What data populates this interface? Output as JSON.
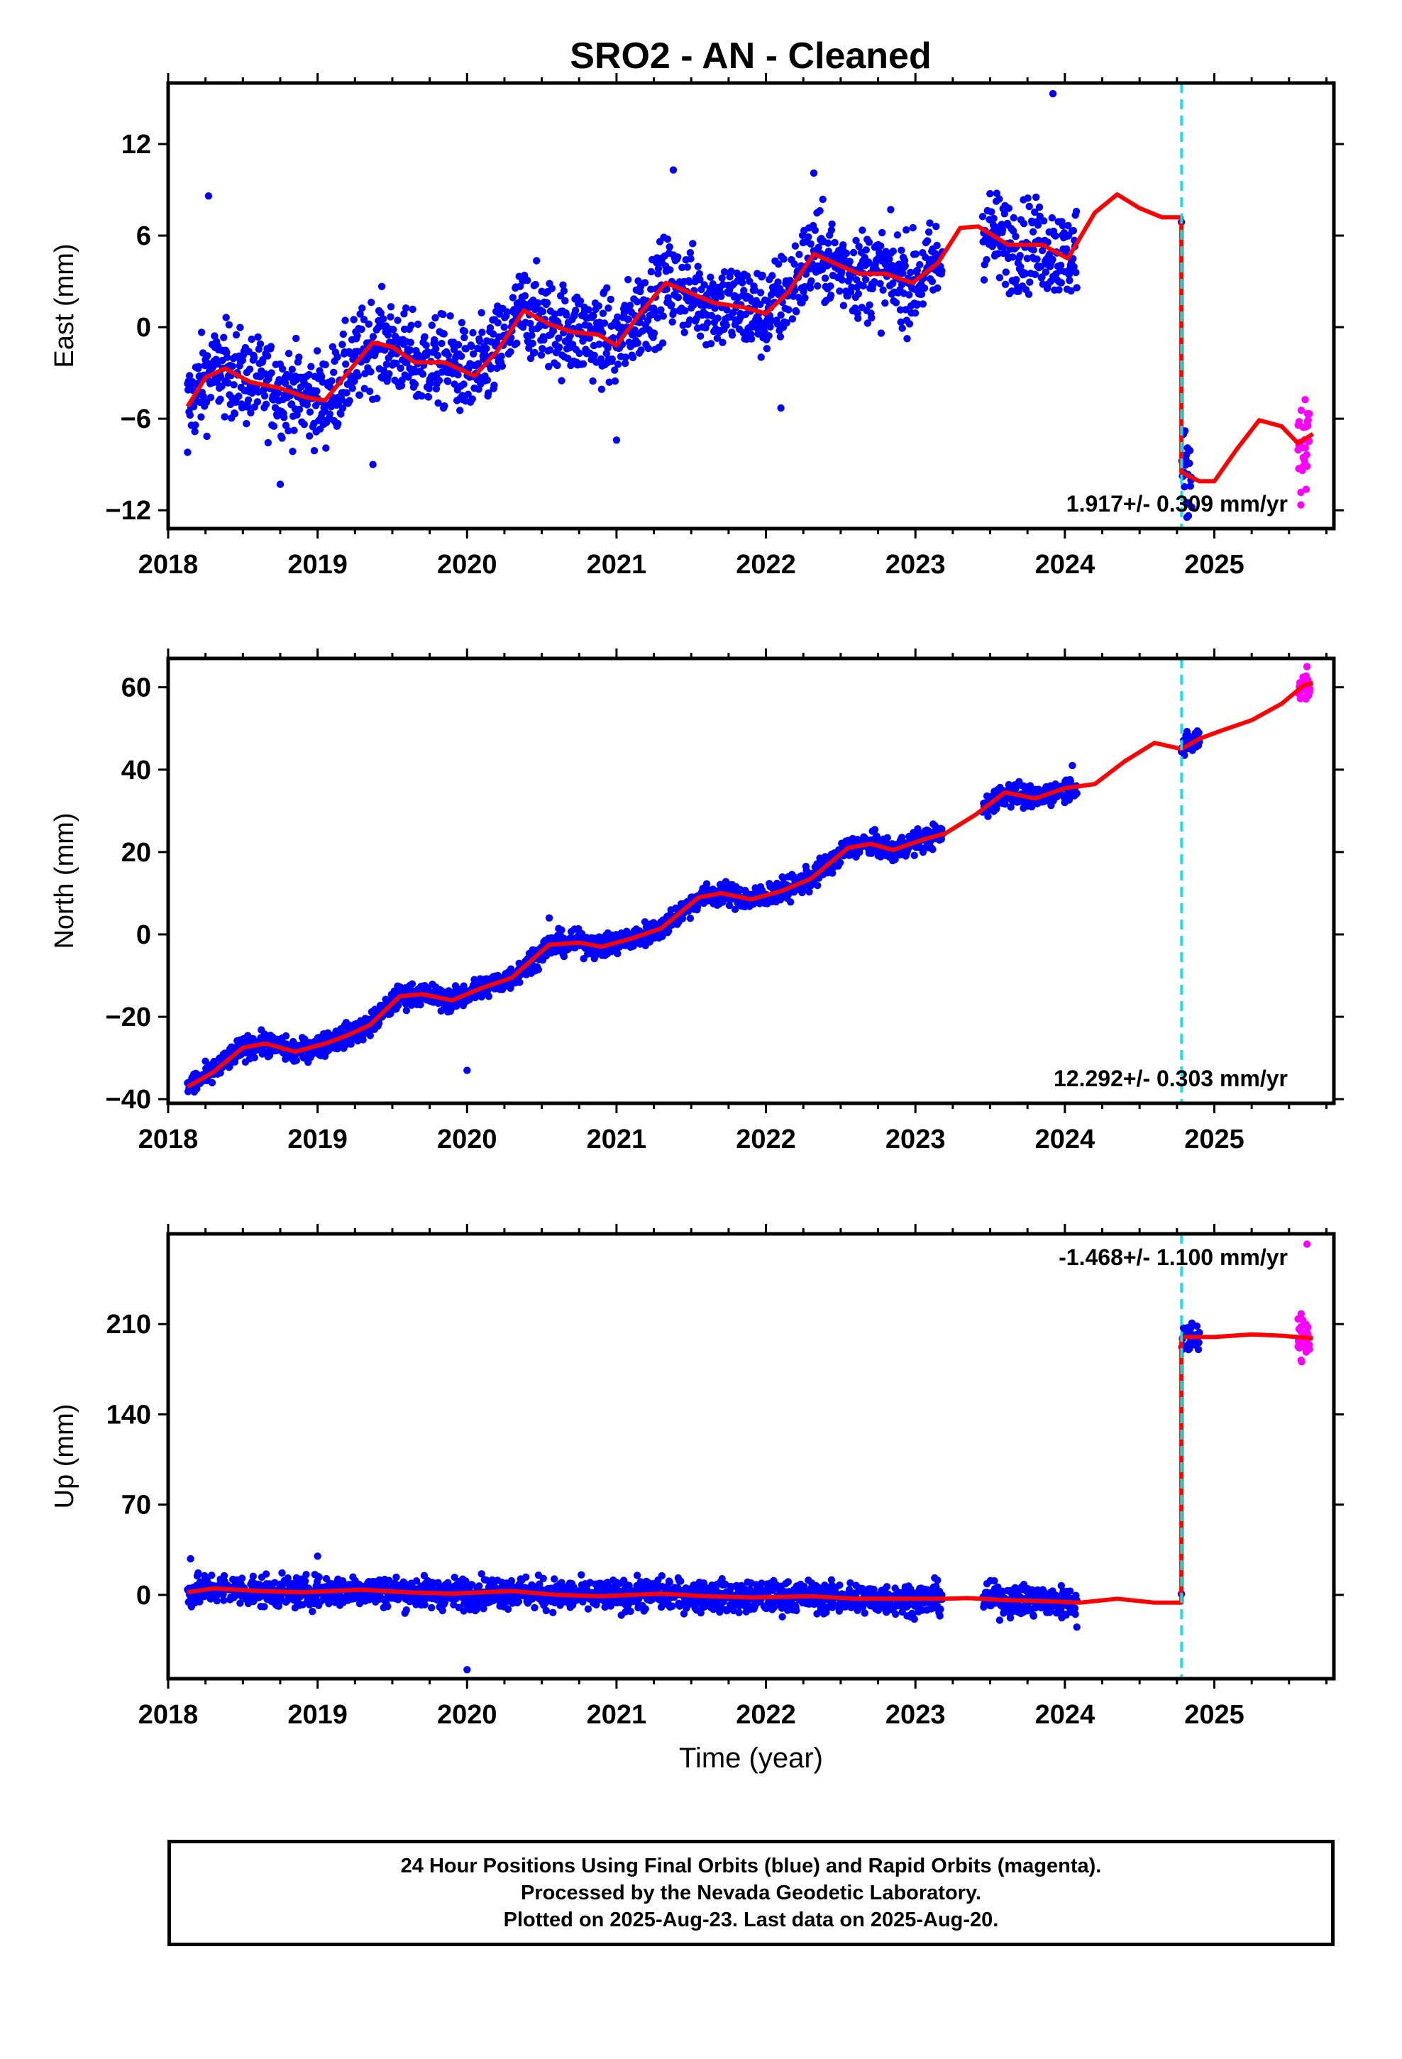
{
  "title": "SRO2  - AN - Cleaned",
  "colors": {
    "final_orbits": "#0000ff",
    "rapid_orbits": "#ff00ff",
    "model": "#ff0000",
    "equipment_change": "#00e5ee"
  },
  "chart_data": [
    {
      "type": "scatter",
      "component": "East",
      "ylabel": "East (mm)",
      "xlabel": "",
      "xlim": [
        2018,
        2025.8
      ],
      "ylim": [
        -13.2,
        16
      ],
      "yticks": [
        -12,
        -6,
        0,
        6,
        12
      ],
      "xticks": [
        2018,
        2019,
        2020,
        2021,
        2022,
        2023,
        2024,
        2025
      ],
      "rate_text": "1.917+/- 0.309 mm/yr",
      "offset_epoch": 2024.78,
      "rapid_period": [
        2025.56,
        2025.64
      ],
      "model_curve": [
        [
          2018.13,
          -5.2
        ],
        [
          2018.25,
          -3.3
        ],
        [
          2018.38,
          -2.7
        ],
        [
          2018.55,
          -3.6
        ],
        [
          2018.75,
          -4.0
        ],
        [
          2018.92,
          -4.6
        ],
        [
          2019.05,
          -4.8
        ],
        [
          2019.2,
          -3.0
        ],
        [
          2019.37,
          -1.0
        ],
        [
          2019.5,
          -1.3
        ],
        [
          2019.65,
          -2.3
        ],
        [
          2019.85,
          -2.3
        ],
        [
          2020.05,
          -3.2
        ],
        [
          2020.2,
          -1.6
        ],
        [
          2020.38,
          1.1
        ],
        [
          2020.55,
          0.2
        ],
        [
          2020.7,
          -0.3
        ],
        [
          2020.88,
          -0.5
        ],
        [
          2021.0,
          -1.2
        ],
        [
          2021.15,
          0.8
        ],
        [
          2021.33,
          2.9
        ],
        [
          2021.48,
          2.3
        ],
        [
          2021.65,
          1.6
        ],
        [
          2021.85,
          1.3
        ],
        [
          2022.0,
          0.9
        ],
        [
          2022.15,
          2.3
        ],
        [
          2022.32,
          4.8
        ],
        [
          2022.48,
          4.1
        ],
        [
          2022.62,
          3.5
        ],
        [
          2022.8,
          3.5
        ],
        [
          2022.98,
          2.9
        ],
        [
          2023.15,
          4.2
        ],
        [
          2023.3,
          6.5
        ],
        [
          2023.42,
          6.6
        ],
        [
          2023.62,
          5.4
        ],
        [
          2023.85,
          5.4
        ],
        [
          2024.02,
          4.5
        ],
        [
          2024.2,
          7.5
        ],
        [
          2024.35,
          8.7
        ],
        [
          2024.5,
          7.8
        ],
        [
          2024.65,
          7.2
        ],
        [
          2024.78,
          7.2
        ],
        [
          2024.78,
          -9.5
        ],
        [
          2024.9,
          -10.1
        ],
        [
          2025.0,
          -10.1
        ],
        [
          2025.15,
          -8.0
        ],
        [
          2025.3,
          -6.1
        ],
        [
          2025.45,
          -6.5
        ],
        [
          2025.56,
          -7.6
        ],
        [
          2025.66,
          -7.0
        ]
      ],
      "outliers": [
        [
          2018.13,
          -8.2
        ],
        [
          2018.27,
          8.6
        ],
        [
          2018.75,
          -10.3
        ],
        [
          2019.37,
          -9.0
        ],
        [
          2021.0,
          -7.4
        ],
        [
          2022.1,
          -5.3
        ],
        [
          2022.32,
          10.1
        ],
        [
          2021.38,
          10.3
        ],
        [
          2023.92,
          15.3
        ],
        [
          2024.82,
          -11.5
        ]
      ],
      "series": [
        {
          "name": "Final Orbits",
          "segments": [
            [
              2018.13,
              2023.18
            ],
            [
              2023.45,
              2024.08
            ],
            [
              2024.78,
              2024.85
            ]
          ]
        },
        {
          "name": "Rapid Orbits",
          "segments": [
            [
              2025.56,
              2025.64
            ]
          ]
        }
      ]
    },
    {
      "type": "scatter",
      "component": "North",
      "ylabel": "North (mm)",
      "xlabel": "",
      "xlim": [
        2018,
        2025.8
      ],
      "ylim": [
        -41,
        67
      ],
      "yticks": [
        -40,
        -20,
        0,
        20,
        40,
        60
      ],
      "xticks": [
        2018,
        2019,
        2020,
        2021,
        2022,
        2023,
        2024,
        2025
      ],
      "rate_text": "12.292+/- 0.303 mm/yr",
      "offset_epoch": 2024.78,
      "rapid_period": [
        2025.56,
        2025.64
      ],
      "model_curve": [
        [
          2018.13,
          -37.0
        ],
        [
          2018.3,
          -33.5
        ],
        [
          2018.5,
          -27.5
        ],
        [
          2018.65,
          -26.5
        ],
        [
          2018.85,
          -28.5
        ],
        [
          2019.05,
          -26.5
        ],
        [
          2019.2,
          -24.5
        ],
        [
          2019.35,
          -22.0
        ],
        [
          2019.55,
          -15.0
        ],
        [
          2019.7,
          -14.5
        ],
        [
          2019.9,
          -16.0
        ],
        [
          2020.1,
          -13.0
        ],
        [
          2020.3,
          -10.5
        ],
        [
          2020.55,
          -2.5
        ],
        [
          2020.75,
          -2.0
        ],
        [
          2020.9,
          -3.0
        ],
        [
          2021.1,
          -1.0
        ],
        [
          2021.3,
          1.5
        ],
        [
          2021.55,
          9.0
        ],
        [
          2021.7,
          10.0
        ],
        [
          2021.9,
          8.5
        ],
        [
          2022.1,
          10.5
        ],
        [
          2022.3,
          13.5
        ],
        [
          2022.55,
          21.0
        ],
        [
          2022.7,
          22.0
        ],
        [
          2022.85,
          20.5
        ],
        [
          2023.05,
          23.0
        ],
        [
          2023.2,
          24.5
        ],
        [
          2023.4,
          29.0
        ],
        [
          2023.6,
          34.5
        ],
        [
          2023.8,
          33.0
        ],
        [
          2024.0,
          35.5
        ],
        [
          2024.2,
          36.5
        ],
        [
          2024.4,
          42.0
        ],
        [
          2024.6,
          46.5
        ],
        [
          2024.78,
          45.0
        ],
        [
          2024.9,
          47.5
        ],
        [
          2025.05,
          49.5
        ],
        [
          2025.25,
          52.0
        ],
        [
          2025.45,
          56.0
        ],
        [
          2025.6,
          60.5
        ],
        [
          2025.66,
          61.0
        ]
      ],
      "outliers": [
        [
          2020.0,
          -33.0
        ],
        [
          2020.55,
          4.0
        ],
        [
          2024.05,
          41.0
        ],
        [
          2025.62,
          65.0
        ],
        [
          2025.6,
          57.5
        ]
      ],
      "series": [
        {
          "name": "Final Orbits",
          "segments": [
            [
              2018.13,
              2023.18
            ],
            [
              2023.45,
              2024.08
            ],
            [
              2024.78,
              2024.9
            ]
          ]
        },
        {
          "name": "Rapid Orbits",
          "segments": [
            [
              2025.56,
              2025.64
            ]
          ]
        }
      ]
    },
    {
      "type": "scatter",
      "component": "Up",
      "ylabel": "Up (mm)",
      "xlabel": "Time (year)",
      "xlim": [
        2018,
        2025.8
      ],
      "ylim": [
        -65,
        280
      ],
      "yticks": [
        0,
        70,
        140,
        210
      ],
      "xticks": [
        2018,
        2019,
        2020,
        2021,
        2022,
        2023,
        2024,
        2025
      ],
      "rate_text": "-1.468+/- 1.100 mm/yr",
      "offset_epoch": 2024.78,
      "rapid_period": [
        2025.56,
        2025.64
      ],
      "model_curve": [
        [
          2018.13,
          2.0
        ],
        [
          2018.3,
          5.0
        ],
        [
          2018.6,
          3.0
        ],
        [
          2018.9,
          2.0
        ],
        [
          2019.3,
          4.0
        ],
        [
          2019.6,
          2.0
        ],
        [
          2019.9,
          1.0
        ],
        [
          2020.3,
          3.0
        ],
        [
          2020.6,
          0.0
        ],
        [
          2020.9,
          -1.0
        ],
        [
          2021.3,
          1.0
        ],
        [
          2021.6,
          -1.0
        ],
        [
          2021.9,
          -2.0
        ],
        [
          2022.3,
          -1.0
        ],
        [
          2022.6,
          -3.0
        ],
        [
          2022.9,
          -3.0
        ],
        [
          2023.2,
          -3.0
        ],
        [
          2023.35,
          -2.5
        ],
        [
          2023.6,
          -4.0
        ],
        [
          2023.9,
          -5.0
        ],
        [
          2024.1,
          -6.0
        ],
        [
          2024.35,
          -3.0
        ],
        [
          2024.6,
          -6.0
        ],
        [
          2024.78,
          -6.0
        ],
        [
          2024.78,
          200.0
        ],
        [
          2025.0,
          200.0
        ],
        [
          2025.25,
          202.0
        ],
        [
          2025.45,
          201.0
        ],
        [
          2025.66,
          199.0
        ]
      ],
      "outliers": [
        [
          2020.0,
          -58.0
        ],
        [
          2025.62,
          272.0
        ],
        [
          2025.58,
          182.0
        ],
        [
          2024.08,
          -25.0
        ],
        [
          2018.15,
          28.0
        ],
        [
          2019.0,
          30.0
        ]
      ],
      "series": [
        {
          "name": "Final Orbits",
          "segments": [
            [
              2018.13,
              2023.18
            ],
            [
              2023.45,
              2024.08
            ],
            [
              2024.78,
              2024.9
            ]
          ]
        },
        {
          "name": "Rapid Orbits",
          "segments": [
            [
              2025.56,
              2025.64
            ]
          ]
        }
      ]
    }
  ],
  "caption": {
    "line1": "24 Hour Positions Using Final Orbits (blue) and Rapid Orbits (magenta).",
    "line2": "Processed by the Nevada Geodetic Laboratory.",
    "line3": "Plotted on 2025-Aug-23. Last data on 2025-Aug-20."
  }
}
